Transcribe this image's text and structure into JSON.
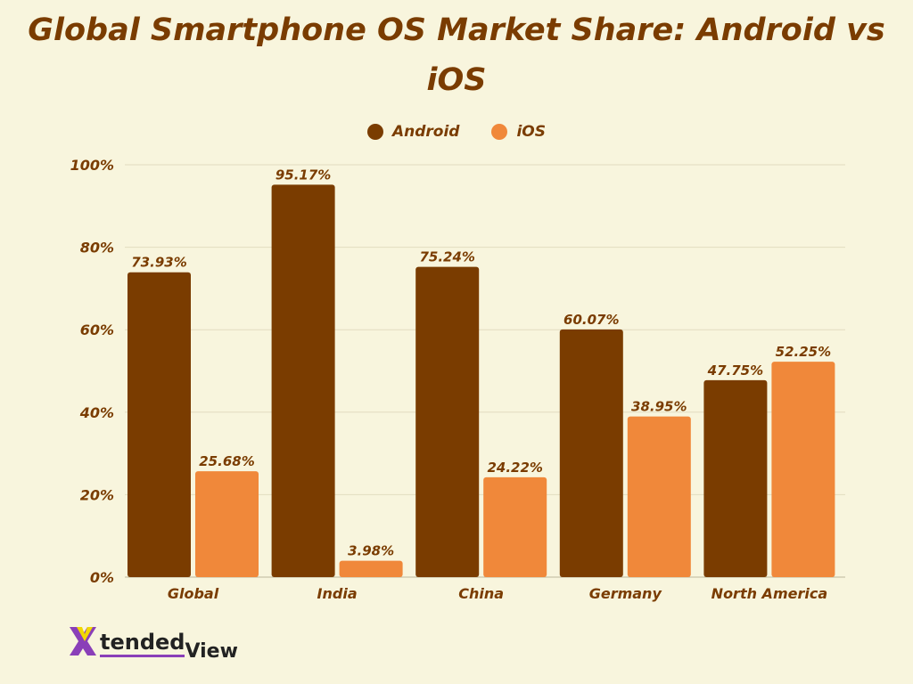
{
  "chart_data": {
    "type": "bar",
    "title": "Global Smartphone OS Market Share: Android vs iOS",
    "categories": [
      "Global",
      "India",
      "China",
      "Germany",
      "North America"
    ],
    "series": [
      {
        "name": "Android",
        "color": "#7a3c00",
        "values": [
          73.93,
          95.17,
          75.24,
          60.07,
          47.75
        ],
        "labels": [
          "73.93%",
          "95.17%",
          "75.24%",
          "60.07%",
          "47.75%"
        ]
      },
      {
        "name": "iOS",
        "color": "#f0883a",
        "values": [
          25.68,
          3.98,
          24.22,
          38.95,
          52.25
        ],
        "labels": [
          "25.68%",
          "3.98%",
          "24.22%",
          "38.95%",
          "52.25%"
        ]
      }
    ],
    "yticks": [
      "0%",
      "20%",
      "40%",
      "60%",
      "80%",
      "100%"
    ],
    "ylim": [
      0,
      100
    ],
    "grid": true,
    "legend_position": "top-center",
    "xlabel": "",
    "ylabel": ""
  },
  "logo": {
    "text_x": "X",
    "text_main": "tended",
    "text_view": "View"
  }
}
